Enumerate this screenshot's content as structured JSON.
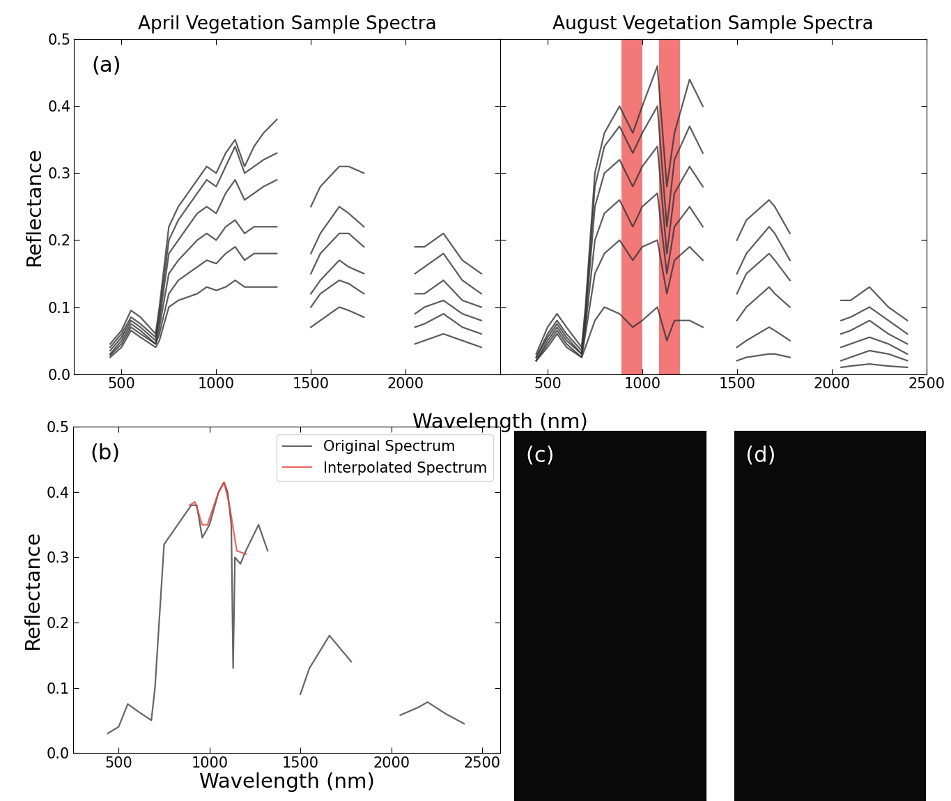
{
  "chart_data": [
    {
      "type": "line",
      "label": "(a)",
      "title": "April Vegetation Sample Spectra",
      "xlabel": "Wavelength (nm)",
      "ylabel": "Reflectance",
      "x": [
        440,
        500,
        550,
        600,
        680,
        700,
        750,
        800,
        900,
        950,
        1000,
        1050,
        1100,
        1150,
        1200,
        1250,
        1320,
        1400,
        1500,
        1550,
        1650,
        1700,
        1780,
        1900,
        2050,
        2100,
        2200,
        2300,
        2400
      ],
      "series": [
        {
          "color": "#333333",
          "values": [
            0.045,
            0.065,
            0.095,
            0.085,
            0.06,
            0.1,
            0.22,
            0.25,
            0.29,
            0.31,
            0.3,
            0.33,
            0.35,
            0.31,
            0.34,
            0.36,
            0.38,
            null,
            0.25,
            0.28,
            0.31,
            0.31,
            0.3,
            null,
            0.19,
            0.19,
            0.21,
            0.17,
            0.15
          ]
        },
        {
          "color": "#333333",
          "values": [
            0.04,
            0.06,
            0.085,
            0.075,
            0.055,
            0.09,
            0.2,
            0.23,
            0.27,
            0.29,
            0.28,
            0.31,
            0.34,
            0.3,
            0.31,
            0.32,
            0.33,
            null,
            0.18,
            0.21,
            0.25,
            0.24,
            0.22,
            null,
            0.15,
            0.16,
            0.18,
            0.14,
            0.12
          ]
        },
        {
          "color": "#333333",
          "values": [
            0.035,
            0.055,
            0.08,
            0.07,
            0.05,
            0.08,
            0.18,
            0.2,
            0.24,
            0.25,
            0.24,
            0.27,
            0.29,
            0.26,
            0.27,
            0.28,
            0.29,
            null,
            0.15,
            0.18,
            0.21,
            0.21,
            0.19,
            null,
            0.12,
            0.12,
            0.14,
            0.11,
            0.1
          ]
        },
        {
          "color": "#333333",
          "values": [
            0.03,
            0.05,
            0.075,
            0.065,
            0.045,
            0.07,
            0.15,
            0.17,
            0.2,
            0.21,
            0.2,
            0.22,
            0.23,
            0.21,
            0.22,
            0.22,
            0.22,
            null,
            0.12,
            0.14,
            0.17,
            0.16,
            0.15,
            null,
            0.09,
            0.1,
            0.11,
            0.09,
            0.08
          ]
        },
        {
          "color": "#333333",
          "values": [
            0.028,
            0.045,
            0.07,
            0.06,
            0.045,
            0.06,
            0.12,
            0.14,
            0.16,
            0.17,
            0.165,
            0.18,
            0.19,
            0.17,
            0.18,
            0.18,
            0.18,
            null,
            0.1,
            0.12,
            0.14,
            0.135,
            0.12,
            null,
            0.07,
            0.075,
            0.09,
            0.07,
            0.06
          ]
        },
        {
          "color": "#333333",
          "values": [
            0.025,
            0.04,
            0.065,
            0.055,
            0.04,
            0.05,
            0.1,
            0.11,
            0.12,
            0.13,
            0.125,
            0.13,
            0.14,
            0.13,
            0.13,
            0.13,
            0.13,
            null,
            0.07,
            0.08,
            0.1,
            0.095,
            0.085,
            null,
            0.045,
            0.05,
            0.06,
            0.05,
            0.04
          ]
        }
      ],
      "xlim": [
        250,
        2500
      ],
      "xticks": [
        500,
        1000,
        1500,
        2000
      ],
      "ylim": [
        0.0,
        0.5
      ],
      "yticks": [
        0.0,
        0.1,
        0.2,
        0.3,
        0.4,
        0.5
      ]
    },
    {
      "type": "line",
      "title": "August Vegetation Sample Spectra",
      "x": [
        440,
        500,
        550,
        600,
        680,
        700,
        750,
        800,
        880,
        950,
        1000,
        1080,
        1130,
        1170,
        1250,
        1320,
        1400,
        1500,
        1550,
        1670,
        1700,
        1780,
        1900,
        2050,
        2100,
        2200,
        2300,
        2400
      ],
      "bands": [
        [
          890,
          1000
        ],
        [
          1090,
          1200
        ]
      ],
      "band_color": "#f26b6b",
      "series": [
        {
          "color": "#333333",
          "values": [
            0.03,
            0.07,
            0.09,
            0.07,
            0.04,
            0.1,
            0.3,
            0.36,
            0.4,
            0.36,
            0.4,
            0.46,
            0.28,
            0.36,
            0.44,
            0.4,
            null,
            0.2,
            0.23,
            0.26,
            0.25,
            0.21,
            null,
            0.11,
            0.11,
            0.13,
            0.1,
            0.08
          ]
        },
        {
          "color": "#333333",
          "values": [
            0.025,
            0.06,
            0.08,
            0.06,
            0.035,
            0.09,
            0.28,
            0.34,
            0.37,
            0.33,
            0.36,
            0.4,
            0.22,
            0.32,
            0.37,
            0.33,
            null,
            0.15,
            0.18,
            0.22,
            0.21,
            0.17,
            null,
            0.08,
            0.085,
            0.1,
            0.08,
            0.06
          ]
        },
        {
          "color": "#333333",
          "values": [
            0.025,
            0.055,
            0.075,
            0.055,
            0.03,
            0.08,
            0.25,
            0.3,
            0.32,
            0.28,
            0.31,
            0.34,
            0.18,
            0.27,
            0.31,
            0.28,
            null,
            0.12,
            0.15,
            0.18,
            0.17,
            0.14,
            null,
            0.06,
            0.065,
            0.08,
            0.06,
            0.045
          ]
        },
        {
          "color": "#333333",
          "values": [
            0.02,
            0.05,
            0.07,
            0.05,
            0.03,
            0.07,
            0.2,
            0.24,
            0.26,
            0.22,
            0.25,
            0.27,
            0.15,
            0.22,
            0.25,
            0.22,
            null,
            0.08,
            0.1,
            0.13,
            0.12,
            0.1,
            null,
            0.04,
            0.045,
            0.055,
            0.045,
            0.03
          ]
        },
        {
          "color": "#333333",
          "values": [
            0.02,
            0.045,
            0.065,
            0.045,
            0.025,
            0.06,
            0.15,
            0.18,
            0.2,
            0.17,
            0.19,
            0.2,
            0.12,
            0.17,
            0.19,
            0.17,
            null,
            0.04,
            0.05,
            0.07,
            0.065,
            0.05,
            null,
            0.02,
            0.025,
            0.035,
            0.03,
            0.02
          ]
        },
        {
          "color": "#333333",
          "values": [
            0.02,
            0.04,
            0.06,
            0.04,
            0.025,
            0.04,
            0.08,
            0.1,
            0.09,
            0.07,
            0.08,
            0.1,
            0.05,
            0.08,
            0.08,
            0.07,
            null,
            0.02,
            0.025,
            0.03,
            0.03,
            0.025,
            null,
            0.01,
            0.012,
            0.015,
            0.012,
            0.01
          ]
        }
      ],
      "xlim": [
        250,
        2500
      ],
      "xticks": [
        500,
        1000,
        1500,
        2000,
        2500
      ],
      "ylim": [
        0.0,
        0.5
      ],
      "yticks": [
        0.0,
        0.1,
        0.2,
        0.3,
        0.4,
        0.5
      ],
      "tick_labels": "x"
    },
    {
      "type": "line",
      "label": "(b)",
      "xlabel": "Wavelength (nm)",
      "ylabel": "Reflectance",
      "legend": "upper right",
      "series": [
        {
          "name": "Original Spectrum",
          "color": "#404040",
          "x": [
            440,
            500,
            550,
            600,
            680,
            700,
            750,
            800,
            850,
            900,
            930,
            960,
            1000,
            1050,
            1080,
            1100,
            1120,
            1130,
            1140,
            1170,
            1200,
            1270,
            1320,
            1400,
            1500,
            1550,
            1660,
            1720,
            1780,
            1900,
            2050,
            2150,
            2200,
            2300,
            2400
          ],
          "values": [
            0.03,
            0.04,
            0.075,
            0.065,
            0.05,
            0.1,
            0.32,
            0.34,
            0.36,
            0.38,
            0.38,
            0.33,
            0.35,
            0.4,
            0.415,
            0.4,
            0.35,
            0.13,
            0.3,
            0.29,
            0.31,
            0.35,
            0.31,
            null,
            0.09,
            0.13,
            0.18,
            0.16,
            0.14,
            null,
            0.058,
            0.07,
            0.078,
            0.06,
            0.045
          ]
        },
        {
          "name": "Interpolated Spectrum",
          "color": "#e8413c",
          "x": [
            890,
            920,
            960,
            990,
            1000,
            1050,
            1080,
            1110,
            1150,
            1200
          ],
          "values": [
            0.38,
            0.385,
            0.35,
            0.35,
            0.36,
            0.4,
            0.415,
            0.38,
            0.31,
            0.305
          ]
        }
      ],
      "xlim": [
        250,
        2600
      ],
      "xticks": [
        500,
        1000,
        1500,
        2000,
        2500
      ],
      "ylim": [
        0.0,
        0.5
      ],
      "yticks": [
        0.0,
        0.1,
        0.2,
        0.3,
        0.4,
        0.5
      ]
    },
    {
      "type": "image",
      "label": "(c)"
    },
    {
      "type": "image",
      "label": "(d)"
    }
  ]
}
